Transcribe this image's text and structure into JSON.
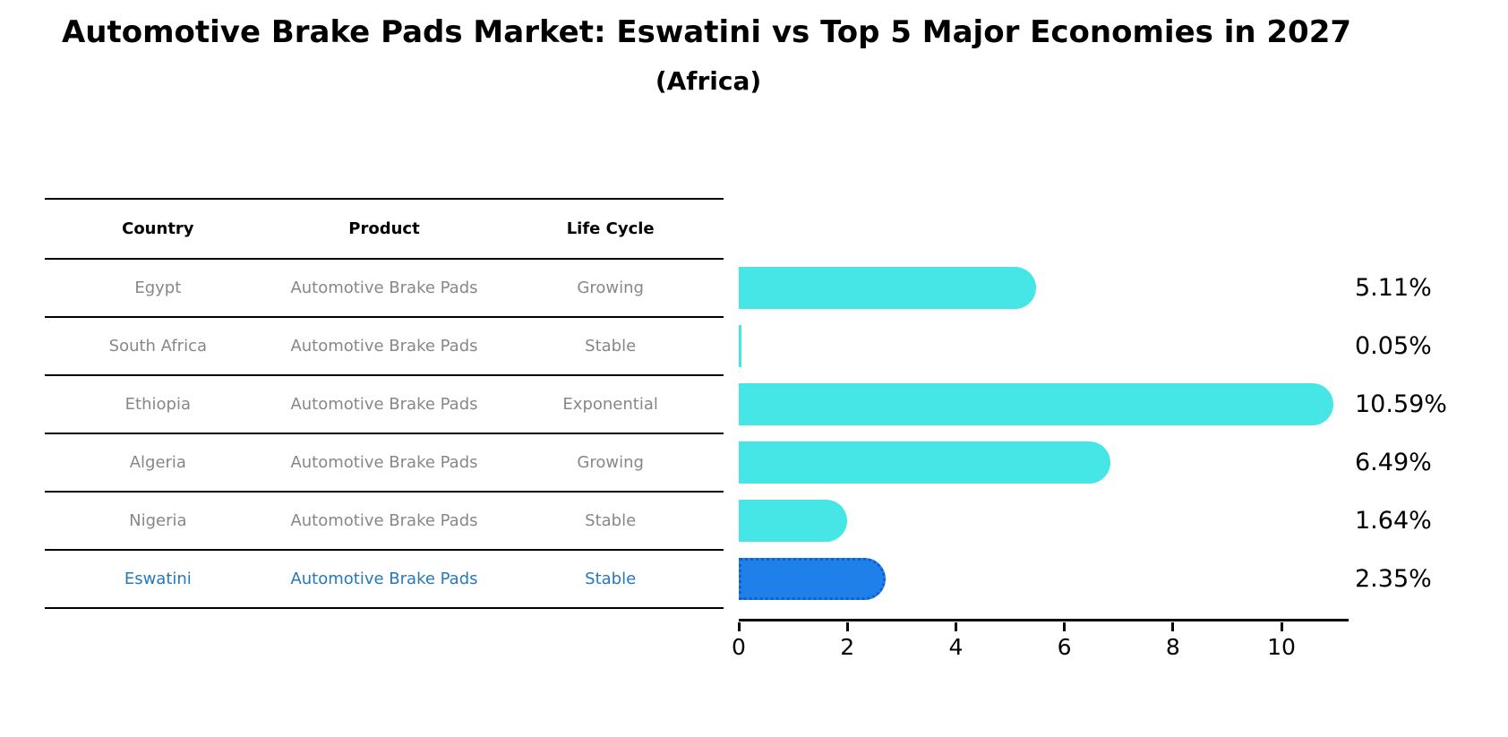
{
  "title": "Automotive Brake Pads Market: Eswatini vs Top 5 Major Economies in 2027",
  "subtitle": "(Africa)",
  "table": {
    "headers": [
      "Country",
      "Product",
      "Life Cycle"
    ],
    "rows": [
      {
        "country": "Egypt",
        "product": "Automotive Brake Pads",
        "life_cycle": "Growing",
        "highlight": false
      },
      {
        "country": "South Africa",
        "product": "Automotive Brake Pads",
        "life_cycle": "Stable",
        "highlight": false
      },
      {
        "country": "Ethiopia",
        "product": "Automotive Brake Pads",
        "life_cycle": "Exponential",
        "highlight": false
      },
      {
        "country": "Algeria",
        "product": "Automotive Brake Pads",
        "life_cycle": "Growing",
        "highlight": false
      },
      {
        "country": "Nigeria",
        "product": "Automotive Brake Pads",
        "life_cycle": "Stable",
        "highlight": false
      },
      {
        "country": "Eswatini",
        "product": "Automotive Brake Pads",
        "life_cycle": "Stable",
        "highlight": true
      }
    ]
  },
  "chart_data": {
    "type": "bar",
    "orientation": "horizontal",
    "categories": [
      "Egypt",
      "South Africa",
      "Ethiopia",
      "Algeria",
      "Nigeria",
      "Eswatini"
    ],
    "values": [
      5.11,
      0.05,
      10.59,
      6.49,
      1.64,
      2.35
    ],
    "value_labels": [
      "5.11%",
      "0.05%",
      "10.59%",
      "6.49%",
      "1.64%",
      "2.35%"
    ],
    "title": "Automotive Brake Pads Market: Eswatini vs Top 5 Major Economies in 2027 (Africa)",
    "xlabel": "",
    "ylabel": "",
    "xlim": [
      0,
      11.2
    ],
    "xticks": [
      0,
      2,
      4,
      6,
      8,
      10
    ],
    "grid": false,
    "legend": false,
    "highlight_index": 5,
    "bar_color": "#46e6e6",
    "highlight_color": "#1e80e8",
    "highlight_border": "dotted"
  },
  "colors": {
    "bar": "#46e6e6",
    "highlight_bar": "#1e80e8",
    "highlight_text": "#2878b8",
    "table_text": "#878787",
    "header_text": "#000000",
    "axis": "#000000",
    "background": "#ffffff"
  }
}
